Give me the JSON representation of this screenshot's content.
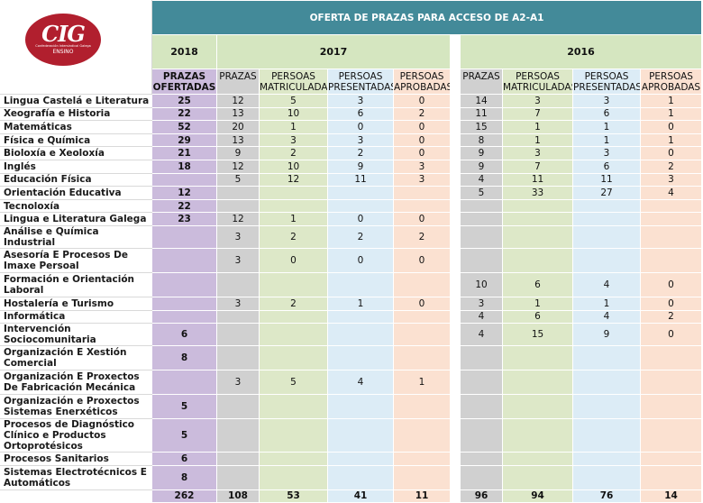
{
  "logo": {
    "word": "CIG",
    "subtitle": "Confederación Intersindical Galega",
    "section": "ENSINO",
    "color": "#b11f2e"
  },
  "title": "OFERTA DE PRAZAS PARA ACCESO DE A2-A1",
  "years": {
    "y2018": "2018",
    "y2017": "2017",
    "y2016": "2016"
  },
  "headers": {
    "prazas_ofertadas": "PRAZAS OFERTADAS",
    "prazas": "PRAZAS",
    "matriculadas": "PERSOAS MATRICULADAS",
    "presentadas": "PERSOAS PRESENTADAS",
    "aprobadas": "PERSOAS APROBADAS"
  },
  "colors": {
    "title": "#438a99",
    "year": "#d5e6c0",
    "ofertadas": "#cbbbdc",
    "prazas": "#d0d0d0",
    "matriculadas": "#dde8c8",
    "presentadas": "#dcecf6",
    "aprobadas": "#fbe1d1"
  },
  "rows": [
    {
      "name": "Lingua Castelá e Literatura",
      "of18": "25",
      "p17": "12",
      "m17": "5",
      "pr17": "3",
      "a17": "0",
      "p16": "14",
      "m16": "3",
      "pr16": "3",
      "a16": "1"
    },
    {
      "name": "Xeografía e Historia",
      "of18": "22",
      "p17": "13",
      "m17": "10",
      "pr17": "6",
      "a17": "2",
      "p16": "11",
      "m16": "7",
      "pr16": "6",
      "a16": "1"
    },
    {
      "name": "Matemáticas",
      "of18": "52",
      "p17": "20",
      "m17": "1",
      "pr17": "0",
      "a17": "0",
      "p16": "15",
      "m16": "1",
      "pr16": "1",
      "a16": "0"
    },
    {
      "name": "Física e Química",
      "of18": "29",
      "p17": "13",
      "m17": "3",
      "pr17": "3",
      "a17": "0",
      "p16": "8",
      "m16": "1",
      "pr16": "1",
      "a16": "1"
    },
    {
      "name": "Bioloxía e Xeoloxía",
      "of18": "21",
      "p17": "9",
      "m17": "2",
      "pr17": "2",
      "a17": "0",
      "p16": "9",
      "m16": "3",
      "pr16": "3",
      "a16": "0"
    },
    {
      "name": "Inglés",
      "of18": "18",
      "p17": "12",
      "m17": "10",
      "pr17": "9",
      "a17": "3",
      "p16": "9",
      "m16": "7",
      "pr16": "6",
      "a16": "2"
    },
    {
      "name": "Educación Física",
      "of18": "",
      "p17": "5",
      "m17": "12",
      "pr17": "11",
      "a17": "3",
      "p16": "4",
      "m16": "11",
      "pr16": "11",
      "a16": "3"
    },
    {
      "name": "Orientación Educativa",
      "of18": "12",
      "p17": "",
      "m17": "",
      "pr17": "",
      "a17": "",
      "p16": "5",
      "m16": "33",
      "pr16": "27",
      "a16": "4"
    },
    {
      "name": "Tecnoloxía",
      "of18": "22",
      "p17": "",
      "m17": "",
      "pr17": "",
      "a17": "",
      "p16": "",
      "m16": "",
      "pr16": "",
      "a16": ""
    },
    {
      "name": "Lingua e Literatura Galega",
      "of18": "23",
      "p17": "12",
      "m17": "1",
      "pr17": "0",
      "a17": "0",
      "p16": "",
      "m16": "",
      "pr16": "",
      "a16": ""
    },
    {
      "name": "Análise e Química Industrial",
      "of18": "",
      "p17": "3",
      "m17": "2",
      "pr17": "2",
      "a17": "2",
      "p16": "",
      "m16": "",
      "pr16": "",
      "a16": ""
    },
    {
      "name": "Asesoría E Procesos De Imaxe Persoal",
      "of18": "",
      "p17": "3",
      "m17": "0",
      "pr17": "0",
      "a17": "0",
      "p16": "",
      "m16": "",
      "pr16": "",
      "a16": ""
    },
    {
      "name": "Formación e Orientación Laboral",
      "of18": "",
      "p17": "",
      "m17": "",
      "pr17": "",
      "a17": "",
      "p16": "10",
      "m16": "6",
      "pr16": "4",
      "a16": "0"
    },
    {
      "name": "Hostalería e Turismo",
      "of18": "",
      "p17": "3",
      "m17": "2",
      "pr17": "1",
      "a17": "0",
      "p16": "3",
      "m16": "1",
      "pr16": "1",
      "a16": "0"
    },
    {
      "name": "Informática",
      "of18": "",
      "p17": "",
      "m17": "",
      "pr17": "",
      "a17": "",
      "p16": "4",
      "m16": "6",
      "pr16": "4",
      "a16": "2"
    },
    {
      "name": "Intervención Sociocomunitaria",
      "of18": "6",
      "p17": "",
      "m17": "",
      "pr17": "",
      "a17": "",
      "p16": "4",
      "m16": "15",
      "pr16": "9",
      "a16": "0"
    },
    {
      "name": "Organización E Xestión Comercial",
      "of18": "8",
      "p17": "",
      "m17": "",
      "pr17": "",
      "a17": "",
      "p16": "",
      "m16": "",
      "pr16": "",
      "a16": ""
    },
    {
      "name": "Organización  E Proxectos De Fabricación Mecánica",
      "of18": "",
      "p17": "3",
      "m17": "5",
      "pr17": "4",
      "a17": "1",
      "p16": "",
      "m16": "",
      "pr16": "",
      "a16": ""
    },
    {
      "name": "Organización e Proxectos Sistemas Enerxéticos",
      "of18": "5",
      "p17": "",
      "m17": "",
      "pr17": "",
      "a17": "",
      "p16": "",
      "m16": "",
      "pr16": "",
      "a16": ""
    },
    {
      "name": "Procesos de Diagnóstico Clínico e Productos Ortoprotésicos",
      "of18": "5",
      "p17": "",
      "m17": "",
      "pr17": "",
      "a17": "",
      "p16": "",
      "m16": "",
      "pr16": "",
      "a16": ""
    },
    {
      "name": "Procesos Sanitarios",
      "of18": "6",
      "p17": "",
      "m17": "",
      "pr17": "",
      "a17": "",
      "p16": "",
      "m16": "",
      "pr16": "",
      "a16": ""
    },
    {
      "name": "Sistemas Electrotécnicos E Automáticos",
      "of18": "8",
      "p17": "",
      "m17": "",
      "pr17": "",
      "a17": "",
      "p16": "",
      "m16": "",
      "pr16": "",
      "a16": ""
    }
  ],
  "totals": {
    "of18": "262",
    "p17": "108",
    "m17": "53",
    "pr17": "41",
    "a17": "11",
    "p16": "96",
    "m16": "94",
    "pr16": "76",
    "a16": "14"
  }
}
